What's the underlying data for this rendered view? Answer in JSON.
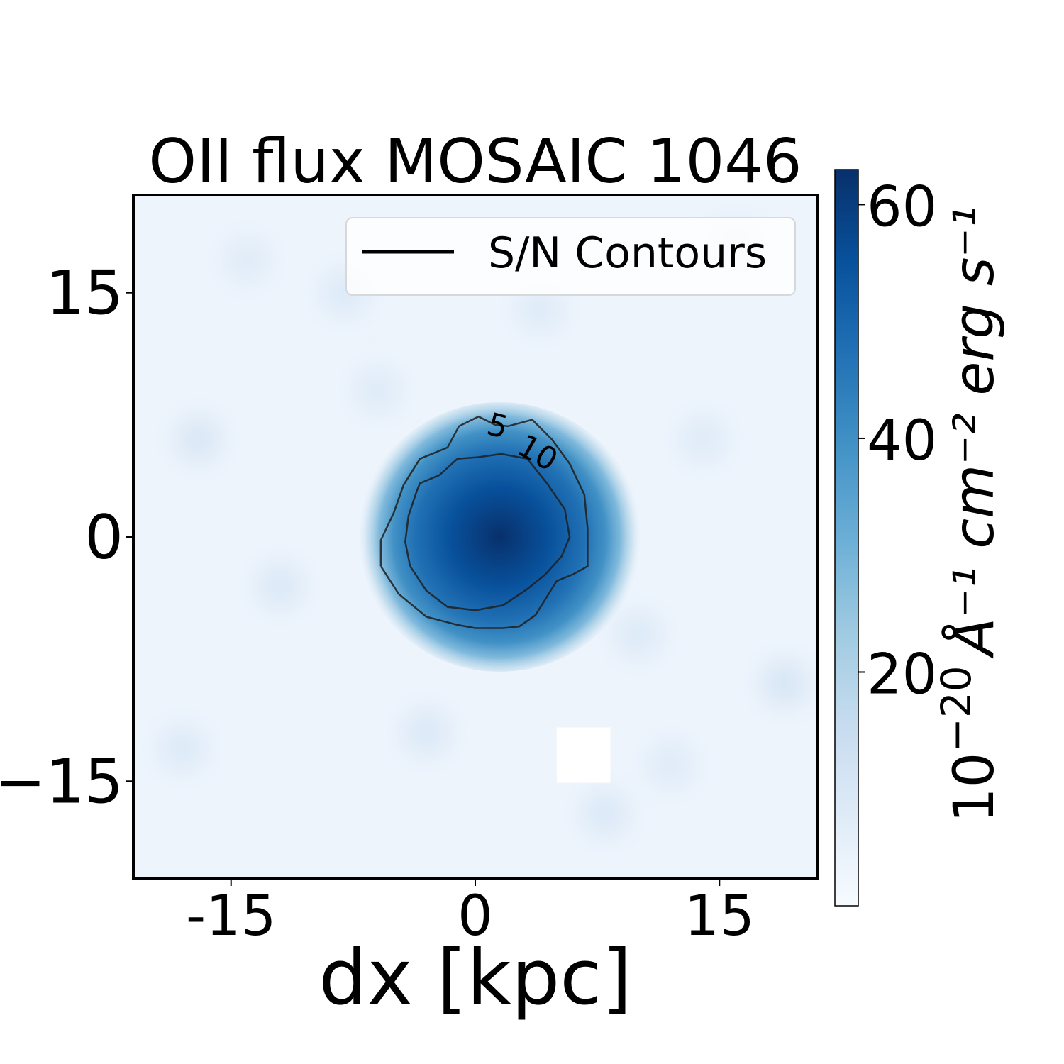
{
  "chart_data": {
    "type": "heatmap",
    "title": "OII flux MOSAIC 1046",
    "xlabel": "dx [kpc]",
    "ylabel": "",
    "xlim": [
      -21,
      21
    ],
    "ylim": [
      -21,
      21
    ],
    "x_ticks": [
      -15,
      0,
      15
    ],
    "x_tick_labels": [
      "-15",
      "0",
      "15"
    ],
    "y_ticks": [
      15,
      0,
      -15
    ],
    "y_tick_labels": [
      "15",
      "0",
      "−15"
    ],
    "grid": false,
    "colormap": "Blues",
    "colorbar": {
      "range": [
        0,
        63
      ],
      "ticks": [
        20,
        40,
        60
      ],
      "tick_labels": [
        "20",
        "40",
        "60"
      ],
      "label_base": "10",
      "label_exponent": "−20",
      "label_units": "Å⁻¹ cm⁻² erg s⁻¹",
      "colors": [
        "#f7fbff",
        "#deebf7",
        "#c6dbef",
        "#9ecae1",
        "#6baed6",
        "#4292c6",
        "#2171b5",
        "#08519c",
        "#08306b"
      ]
    },
    "emission_peak": {
      "x": 1.5,
      "y": 0,
      "value": 63
    },
    "masked_region": {
      "x": [
        5,
        8.3
      ],
      "y": [
        -15.1,
        -11.7
      ]
    },
    "legend": {
      "position": "upper-right",
      "entries": [
        {
          "label": "S/N Contours",
          "color": "#000000"
        }
      ]
    },
    "contours": [
      {
        "level": 5,
        "label": "5",
        "points": [
          [
            -5.8,
            -1.8
          ],
          [
            -5.8,
            -0.2
          ],
          [
            -5.0,
            1.5
          ],
          [
            -4.4,
            3.2
          ],
          [
            -3.4,
            4.8
          ],
          [
            -1.7,
            5.5
          ],
          [
            -1.0,
            6.8
          ],
          [
            0.2,
            7.4
          ],
          [
            1.2,
            6.9
          ],
          [
            2.0,
            6.8
          ],
          [
            3.5,
            7.2
          ],
          [
            4.7,
            6.0
          ],
          [
            5.8,
            4.5
          ],
          [
            6.7,
            2.6
          ],
          [
            6.9,
            0.5
          ],
          [
            6.9,
            -1.8
          ],
          [
            6.0,
            -2.3
          ],
          [
            5.0,
            -2.7
          ],
          [
            3.7,
            -4.8
          ],
          [
            2.7,
            -5.5
          ],
          [
            1.7,
            -5.6
          ],
          [
            0.0,
            -5.6
          ],
          [
            -1.1,
            -5.4
          ],
          [
            -3.0,
            -4.9
          ],
          [
            -4.7,
            -3.5
          ],
          [
            -5.8,
            -1.8
          ]
        ]
      },
      {
        "level": 10,
        "label": "10",
        "points": [
          [
            -4.0,
            -1.8
          ],
          [
            -4.3,
            -0.3
          ],
          [
            -4.1,
            1.3
          ],
          [
            -3.6,
            2.8
          ],
          [
            -3.4,
            3.3
          ],
          [
            -2.2,
            3.8
          ],
          [
            -1.1,
            4.8
          ],
          [
            0.2,
            4.9
          ],
          [
            1.6,
            5.1
          ],
          [
            3.2,
            4.8
          ],
          [
            4.4,
            3.3
          ],
          [
            5.5,
            1.7
          ],
          [
            5.8,
            0.0
          ],
          [
            5.3,
            -1.2
          ],
          [
            4.3,
            -2.3
          ],
          [
            3.2,
            -3.2
          ],
          [
            1.7,
            -4.2
          ],
          [
            0.0,
            -4.5
          ],
          [
            -1.7,
            -4.3
          ],
          [
            -3.0,
            -3.3
          ],
          [
            -4.0,
            -1.8
          ]
        ]
      }
    ]
  }
}
